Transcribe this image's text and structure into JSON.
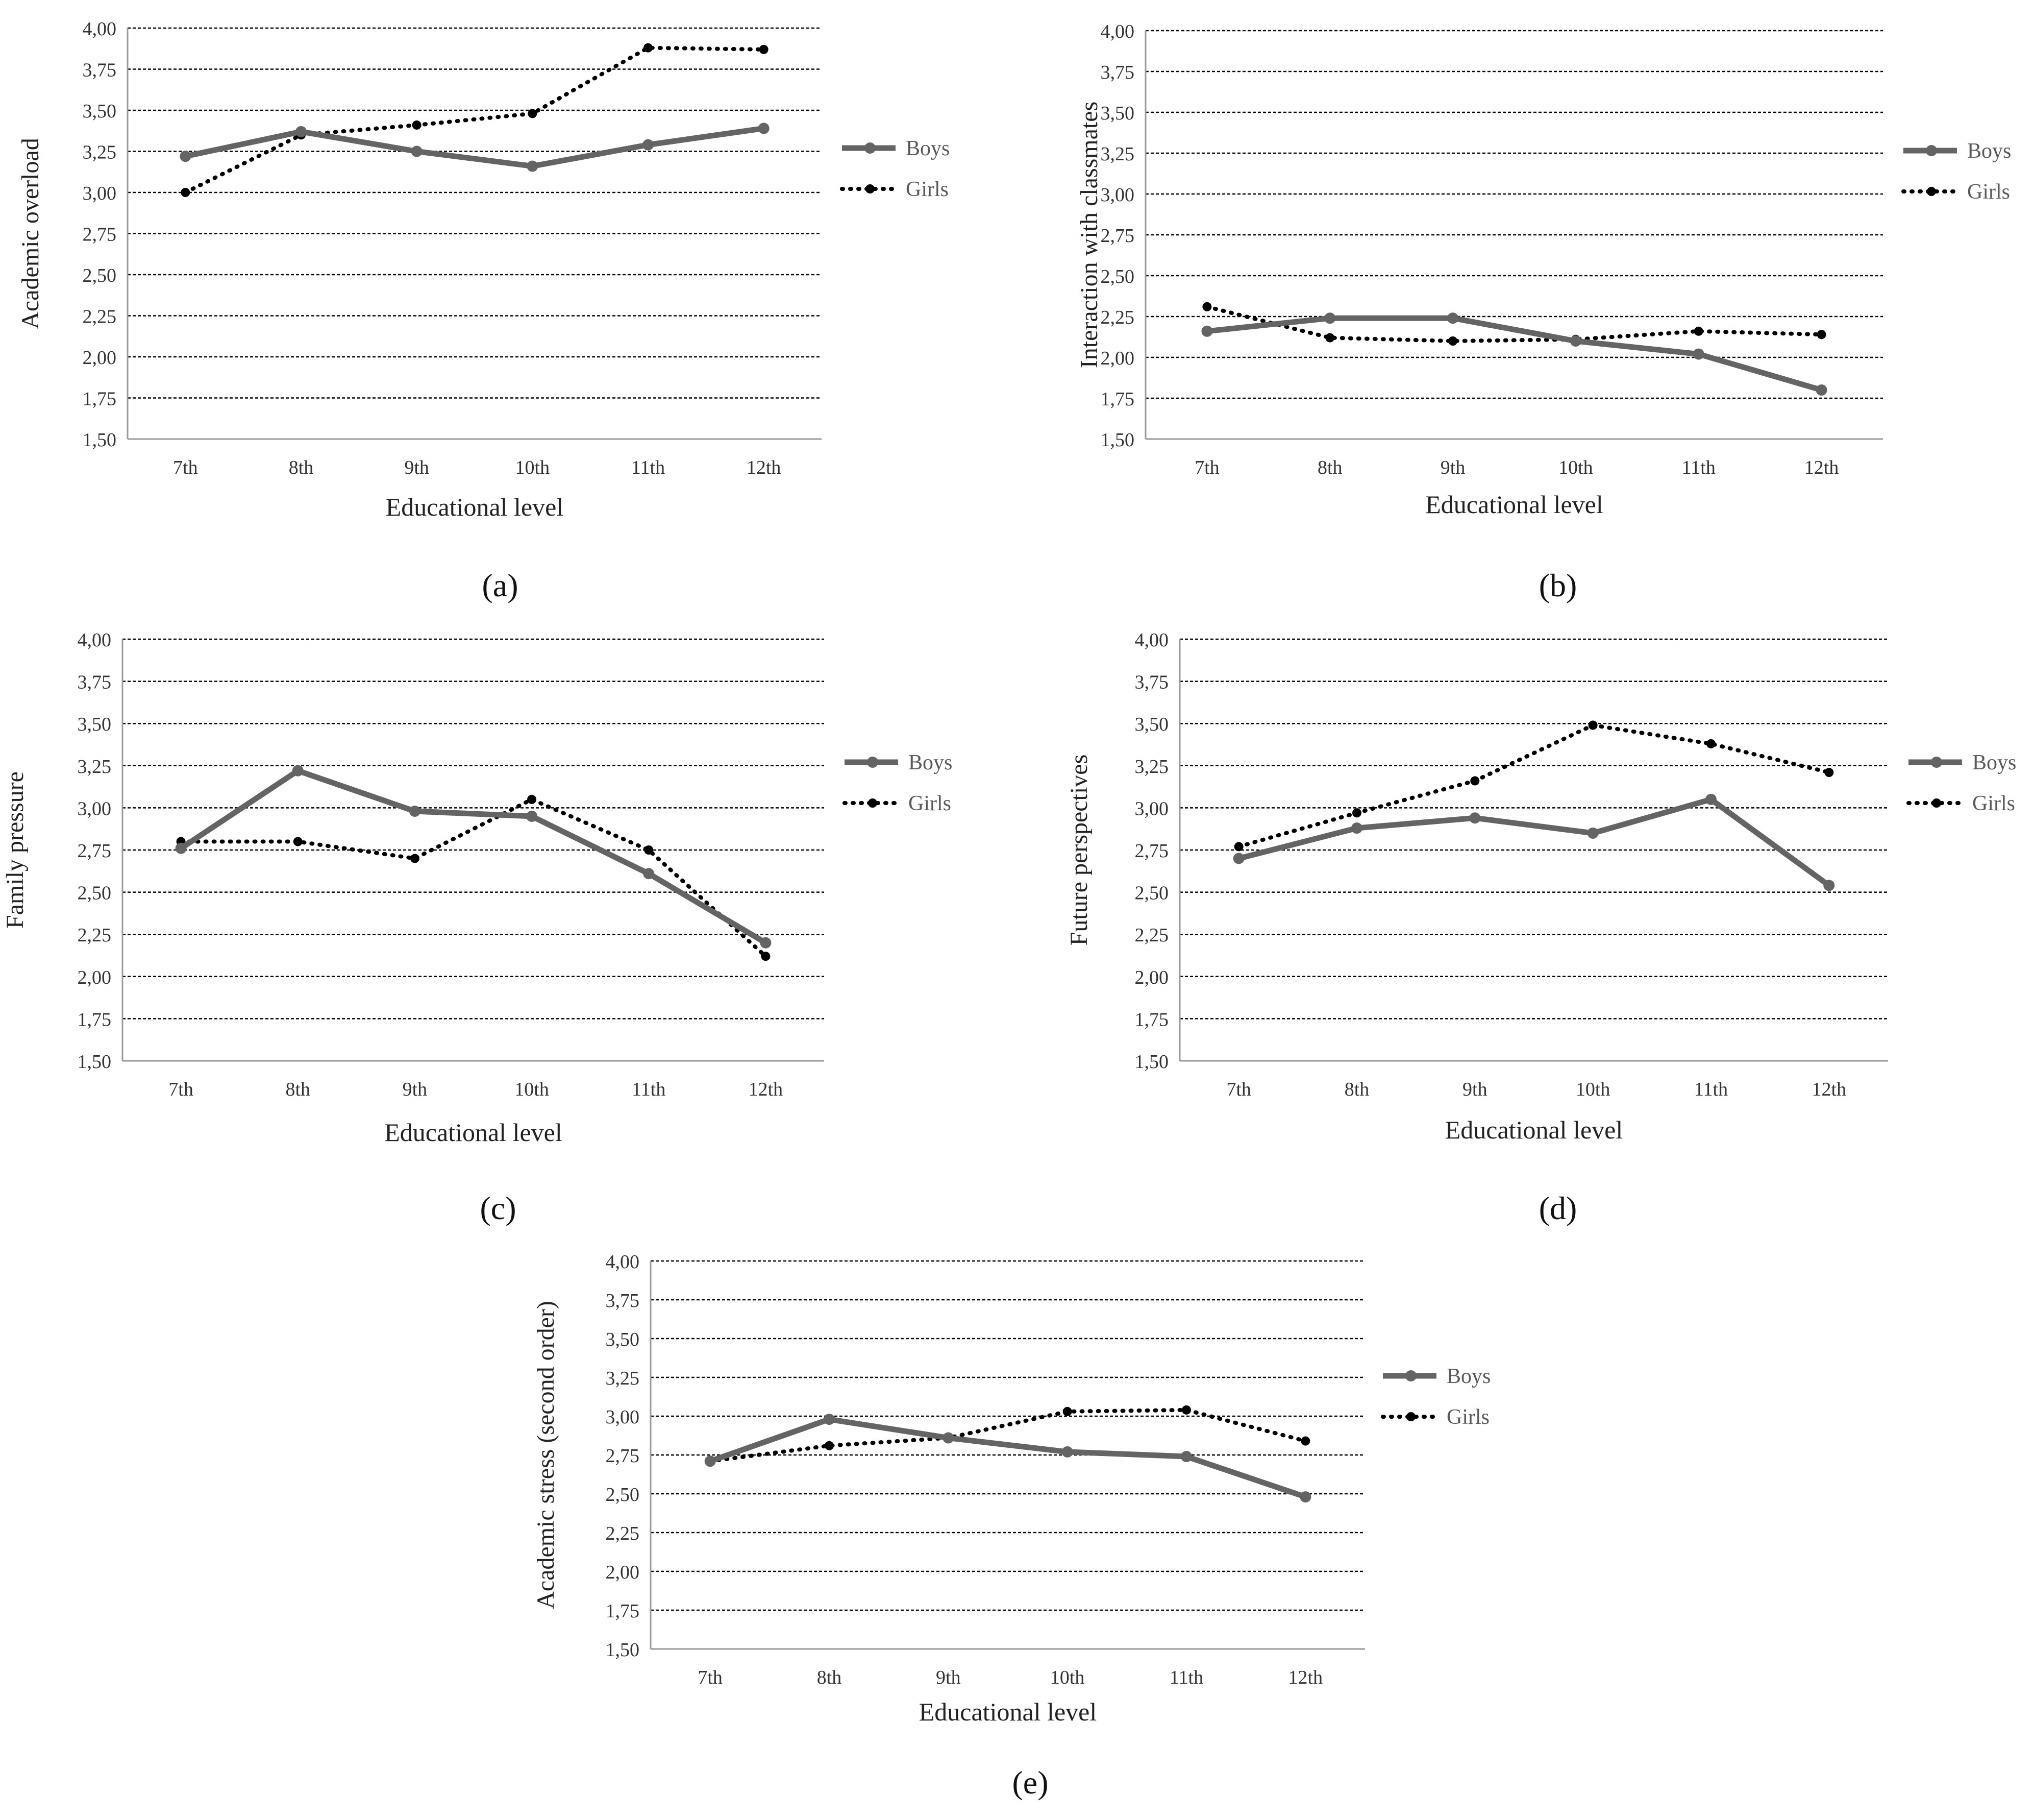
{
  "colors": {
    "boys": "#646464",
    "girls": "#000000",
    "grid": "#000000",
    "axis": "#9a9a9a"
  },
  "chart_data": [
    {
      "id": "a",
      "type": "line",
      "caption": "(a)",
      "title": "",
      "xlabel": "Educational level",
      "ylabel": "Academic overload",
      "categories": [
        "7th",
        "8th",
        "9th",
        "10th",
        "11th",
        "12th"
      ],
      "ylim": [
        1.5,
        4.0
      ],
      "yticks": [
        "1,50",
        "1,75",
        "2,00",
        "2,25",
        "2,50",
        "2,75",
        "3,00",
        "3,25",
        "3,50",
        "3,75",
        "4,00"
      ],
      "grid": true,
      "legend_position": "right",
      "series": [
        {
          "name": "Boys",
          "style": "solid",
          "values": [
            3.22,
            3.37,
            3.25,
            3.16,
            3.29,
            3.39
          ]
        },
        {
          "name": "Girls",
          "style": "dotted",
          "values": [
            3.0,
            3.35,
            3.41,
            3.48,
            3.88,
            3.87
          ]
        }
      ]
    },
    {
      "id": "b",
      "type": "line",
      "caption": "(b)",
      "title": "",
      "xlabel": "Educational level",
      "ylabel": "Interaction with classmates",
      "categories": [
        "7th",
        "8th",
        "9th",
        "10th",
        "11th",
        "12th"
      ],
      "ylim": [
        1.5,
        4.0
      ],
      "yticks": [
        "1,50",
        "1,75",
        "2,00",
        "2,25",
        "2,50",
        "2,75",
        "3,00",
        "3,25",
        "3,50",
        "3,75",
        "4,00"
      ],
      "grid": true,
      "legend_position": "right",
      "series": [
        {
          "name": "Boys",
          "style": "solid",
          "values": [
            2.16,
            2.24,
            2.24,
            2.1,
            2.02,
            1.8
          ]
        },
        {
          "name": "Girls",
          "style": "dotted",
          "values": [
            2.31,
            2.12,
            2.1,
            2.11,
            2.16,
            2.14
          ]
        }
      ]
    },
    {
      "id": "c",
      "type": "line",
      "caption": "(c)",
      "title": "",
      "xlabel": "Educational level",
      "ylabel": "Family pressure",
      "categories": [
        "7th",
        "8th",
        "9th",
        "10th",
        "11th",
        "12th"
      ],
      "ylim": [
        1.5,
        4.0
      ],
      "yticks": [
        "1,50",
        "1,75",
        "2,00",
        "2,25",
        "2,50",
        "2,75",
        "3,00",
        "3,25",
        "3,50",
        "3,75",
        "4,00"
      ],
      "grid": true,
      "legend_position": "right",
      "series": [
        {
          "name": "Boys",
          "style": "solid",
          "values": [
            2.76,
            3.22,
            2.98,
            2.95,
            2.61,
            2.2
          ]
        },
        {
          "name": "Girls",
          "style": "dotted",
          "values": [
            2.8,
            2.8,
            2.7,
            3.05,
            2.75,
            2.12
          ]
        }
      ]
    },
    {
      "id": "d",
      "type": "line",
      "caption": "(d)",
      "title": "",
      "xlabel": "Educational level",
      "ylabel": "Future perspectives",
      "categories": [
        "7th",
        "8th",
        "9th",
        "10th",
        "11th",
        "12th"
      ],
      "ylim": [
        1.5,
        4.0
      ],
      "yticks": [
        "1,50",
        "1,75",
        "2,00",
        "2,25",
        "2,50",
        "2,75",
        "3,00",
        "3,25",
        "3,50",
        "3,75",
        "4,00"
      ],
      "grid": true,
      "legend_position": "right",
      "series": [
        {
          "name": "Boys",
          "style": "solid",
          "values": [
            2.7,
            2.88,
            2.94,
            2.85,
            3.05,
            2.54
          ]
        },
        {
          "name": "Girls",
          "style": "dotted",
          "values": [
            2.77,
            2.97,
            3.16,
            3.49,
            3.38,
            3.21
          ]
        }
      ]
    },
    {
      "id": "e",
      "type": "line",
      "caption": "(e)",
      "title": "",
      "xlabel": "Educational level",
      "ylabel": "Academic stress (second order)",
      "categories": [
        "7th",
        "8th",
        "9th",
        "10th",
        "11th",
        "12th"
      ],
      "ylim": [
        1.5,
        4.0
      ],
      "yticks": [
        "1,50",
        "1,75",
        "2,00",
        "2,25",
        "2,50",
        "2,75",
        "3,00",
        "3,25",
        "3,50",
        "3,75",
        "4,00"
      ],
      "grid": true,
      "legend_position": "right",
      "series": [
        {
          "name": "Boys",
          "style": "solid",
          "values": [
            2.71,
            2.98,
            2.86,
            2.77,
            2.74,
            2.48
          ]
        },
        {
          "name": "Girls",
          "style": "dotted",
          "values": [
            2.71,
            2.81,
            2.86,
            3.03,
            3.04,
            2.84
          ]
        }
      ]
    }
  ]
}
